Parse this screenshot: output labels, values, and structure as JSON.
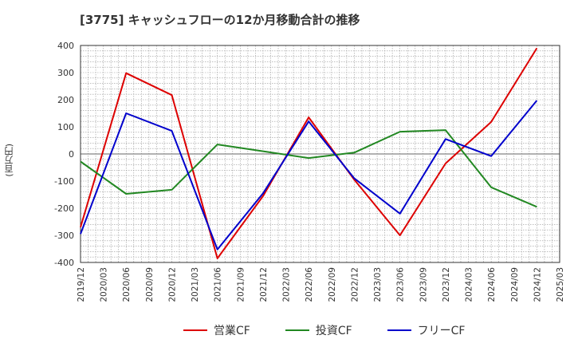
{
  "chart_data": {
    "type": "line",
    "title": "[3775]  キャッシュフローの12か月移動合計の推移",
    "ylabel": "(百万円)",
    "xlabel": "",
    "ylim": [
      -400,
      400
    ],
    "yticks": [
      -400,
      -300,
      -200,
      -100,
      0,
      100,
      200,
      300,
      400
    ],
    "x_tick_labels": [
      "2019/12",
      "2020/03",
      "2020/06",
      "2020/09",
      "2020/12",
      "2021/03",
      "2021/06",
      "2021/09",
      "2021/12",
      "2022/03",
      "2022/06",
      "2022/09",
      "2022/12",
      "2023/03",
      "2023/06",
      "2023/09",
      "2023/12",
      "2024/03",
      "2024/06",
      "2024/09",
      "2024/12",
      "2025/03"
    ],
    "grid": true,
    "legend_position": "bottom",
    "series": [
      {
        "name": "営業CF",
        "color": "#dd0000",
        "points": [
          {
            "x": "2019/12",
            "y": -270
          },
          {
            "x": "2020/06",
            "y": 298
          },
          {
            "x": "2020/12",
            "y": 217
          },
          {
            "x": "2021/06",
            "y": -385
          },
          {
            "x": "2021/12",
            "y": -155
          },
          {
            "x": "2022/06",
            "y": 135
          },
          {
            "x": "2022/12",
            "y": -95
          },
          {
            "x": "2023/06",
            "y": -300
          },
          {
            "x": "2023/12",
            "y": -35
          },
          {
            "x": "2024/06",
            "y": 118
          },
          {
            "x": "2024/12",
            "y": 390
          }
        ]
      },
      {
        "name": "投資CF",
        "color": "#228822",
        "points": [
          {
            "x": "2019/12",
            "y": -28
          },
          {
            "x": "2020/06",
            "y": -147
          },
          {
            "x": "2020/12",
            "y": -132
          },
          {
            "x": "2021/06",
            "y": 35
          },
          {
            "x": "2021/12",
            "y": 10
          },
          {
            "x": "2022/06",
            "y": -15
          },
          {
            "x": "2022/12",
            "y": 5
          },
          {
            "x": "2023/06",
            "y": 82
          },
          {
            "x": "2023/12",
            "y": 88
          },
          {
            "x": "2024/06",
            "y": -123
          },
          {
            "x": "2024/12",
            "y": -195
          }
        ]
      },
      {
        "name": "フリーCF",
        "color": "#0000cc",
        "points": [
          {
            "x": "2019/12",
            "y": -295
          },
          {
            "x": "2020/06",
            "y": 150
          },
          {
            "x": "2020/12",
            "y": 85
          },
          {
            "x": "2021/06",
            "y": -352
          },
          {
            "x": "2021/12",
            "y": -145
          },
          {
            "x": "2022/06",
            "y": 120
          },
          {
            "x": "2022/12",
            "y": -90
          },
          {
            "x": "2023/06",
            "y": -220
          },
          {
            "x": "2023/12",
            "y": 55
          },
          {
            "x": "2024/06",
            "y": -8
          },
          {
            "x": "2024/12",
            "y": 197
          }
        ]
      }
    ]
  }
}
